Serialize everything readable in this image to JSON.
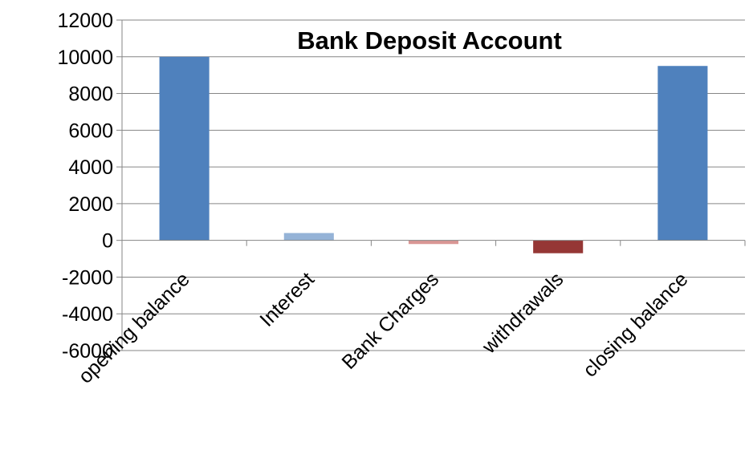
{
  "chart_data": {
    "type": "bar",
    "title": "Bank Deposit Account",
    "xlabel": "",
    "ylabel": "",
    "categories": [
      "opening balance",
      "Interest",
      "Bank Charges",
      "withdrawals",
      "closing balance"
    ],
    "values": [
      10000,
      400,
      -200,
      -700,
      9500
    ],
    "bar_colors": [
      "#4f81bd",
      "#95b3d7",
      "#d99694",
      "#953735",
      "#4f81bd"
    ],
    "ylim": [
      -6000,
      12000
    ],
    "yticks": [
      12000,
      10000,
      8000,
      6000,
      4000,
      2000,
      0,
      -2000,
      -4000,
      -6000
    ],
    "grid": true,
    "legend": "none"
  }
}
